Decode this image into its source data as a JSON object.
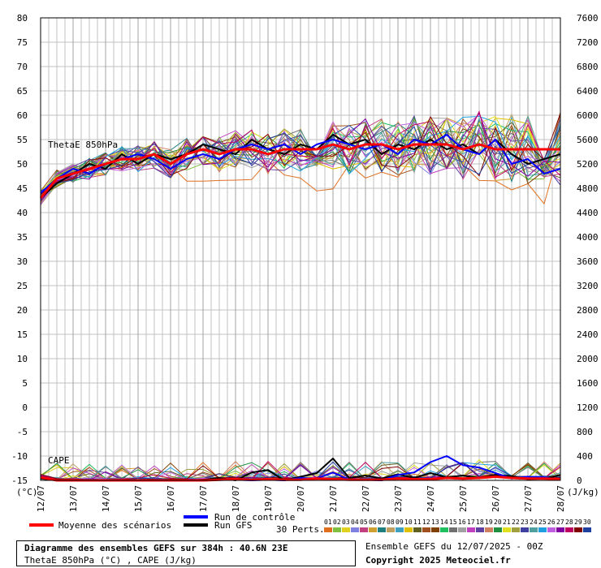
{
  "title": "Diagramme des ensembles GEFS sur 384h : 40.6N 23E",
  "subtitle": "ThetaE 850hPa (°C) , CAPE (J/kg)",
  "run_label": "Ensemble GEFS du 12/07/2025 - 00Z",
  "copyright": "Copyright 2025 Meteociel.fr",
  "legend": {
    "mean": "Moyenne des scénarios",
    "control": "Run de contrôle",
    "gfs": "Run GFS",
    "perts_label": "30 Perts.",
    "pert_numbers": [
      "01",
      "02",
      "03",
      "04",
      "05",
      "06",
      "07",
      "08",
      "09",
      "10",
      "11",
      "12",
      "13",
      "14",
      "15",
      "16",
      "17",
      "18",
      "19",
      "20",
      "21",
      "22",
      "23",
      "24",
      "25",
      "26",
      "27",
      "28",
      "29",
      "30"
    ],
    "pert_colors": [
      "#e07020",
      "#80c040",
      "#e0d020",
      "#8080e0",
      "#c04080",
      "#d0a030",
      "#208080",
      "#c0a060",
      "#40a0c0",
      "#e0c000",
      "#606020",
      "#a05020",
      "#804000",
      "#20c060",
      "#707070",
      "#a0a0a0",
      "#c040c0",
      "#6040a0",
      "#d08060",
      "#209040",
      "#e0e020",
      "#a0a040",
      "#4040a0",
      "#50a0a0",
      "#20a0e0",
      "#c060e0",
      "#8000a0",
      "#c00060",
      "#800000",
      "#2040a0"
    ]
  },
  "colors": {
    "mean": "#ff0000",
    "control": "#0000ff",
    "gfs": "#000000",
    "grid": "#c0c0c0"
  },
  "chart_data": {
    "type": "line",
    "left_axis": {
      "ticks": [
        "80",
        "75",
        "70",
        "65",
        "60",
        "55",
        "50",
        "45",
        "40",
        "35",
        "30",
        "25",
        "20",
        "15",
        "10",
        "5",
        "0",
        "-5",
        "-10",
        "-15"
      ],
      "unit_label": "(°C)",
      "range": [
        -15,
        80
      ]
    },
    "right_axis": {
      "ticks": [
        "7600",
        "7200",
        "6800",
        "6400",
        "6000",
        "5600",
        "5200",
        "4800",
        "4400",
        "4000",
        "3600",
        "3200",
        "2800",
        "2400",
        "2000",
        "1600",
        "1200",
        "800",
        "400",
        "0"
      ],
      "unit_label": "(J/kg)",
      "range": [
        0,
        7600
      ]
    },
    "x_labels": [
      "12/07",
      "13/07",
      "14/07",
      "15/07",
      "16/07",
      "17/07",
      "18/07",
      "19/07",
      "20/07",
      "21/07",
      "22/07",
      "23/07",
      "24/07",
      "25/07",
      "26/07",
      "27/07",
      "28/07"
    ],
    "thetae_label": "ThetaE 850hPa",
    "cape_label": "CAPE",
    "x_hours": [
      0,
      12,
      24,
      36,
      48,
      60,
      72,
      84,
      96,
      108,
      120,
      132,
      144,
      156,
      168,
      180,
      192,
      204,
      216,
      228,
      240,
      252,
      264,
      276,
      288,
      300,
      312,
      324,
      336,
      348,
      360,
      372,
      384
    ],
    "thetae_mean": [
      43,
      47,
      48,
      49,
      50,
      51,
      51,
      52,
      50,
      52,
      53,
      52,
      53,
      53,
      52,
      53,
      53,
      53,
      54,
      53,
      54,
      54,
      53,
      54,
      54,
      54,
      53,
      54,
      53,
      53,
      53,
      53,
      53
    ],
    "thetae_control": [
      44,
      47,
      49,
      48,
      50,
      51,
      52,
      51,
      49,
      51,
      52,
      51,
      53,
      54,
      53,
      54,
      52,
      54,
      55,
      54,
      53,
      54,
      52,
      55,
      54,
      56,
      53,
      52,
      55,
      50,
      51,
      48,
      49
    ],
    "thetae_gfs": [
      43,
      46,
      48,
      50,
      49,
      52,
      50,
      52,
      51,
      52,
      54,
      53,
      52,
      55,
      53,
      52,
      54,
      53,
      56,
      54,
      55,
      52,
      54,
      53,
      55,
      53,
      54,
      52,
      55,
      52,
      50,
      51,
      52
    ],
    "cape_mean": [
      50,
      0,
      0,
      0,
      0,
      0,
      0,
      0,
      0,
      0,
      0,
      10,
      20,
      10,
      20,
      10,
      10,
      30,
      20,
      10,
      10,
      10,
      30,
      20,
      20,
      40,
      30,
      40,
      60,
      40,
      30,
      30,
      20
    ],
    "cape_control": [
      60,
      0,
      0,
      0,
      0,
      0,
      0,
      0,
      0,
      0,
      0,
      10,
      10,
      0,
      10,
      0,
      40,
      30,
      130,
      10,
      10,
      0,
      90,
      130,
      300,
      400,
      250,
      210,
      120,
      30,
      60,
      50,
      10
    ],
    "cape_gfs": [
      30,
      0,
      0,
      0,
      0,
      0,
      0,
      0,
      0,
      0,
      10,
      40,
      0,
      130,
      170,
      0,
      60,
      120,
      360,
      40,
      80,
      30,
      100,
      40,
      120,
      50,
      80,
      40,
      90,
      70,
      20,
      30,
      90
    ]
  }
}
